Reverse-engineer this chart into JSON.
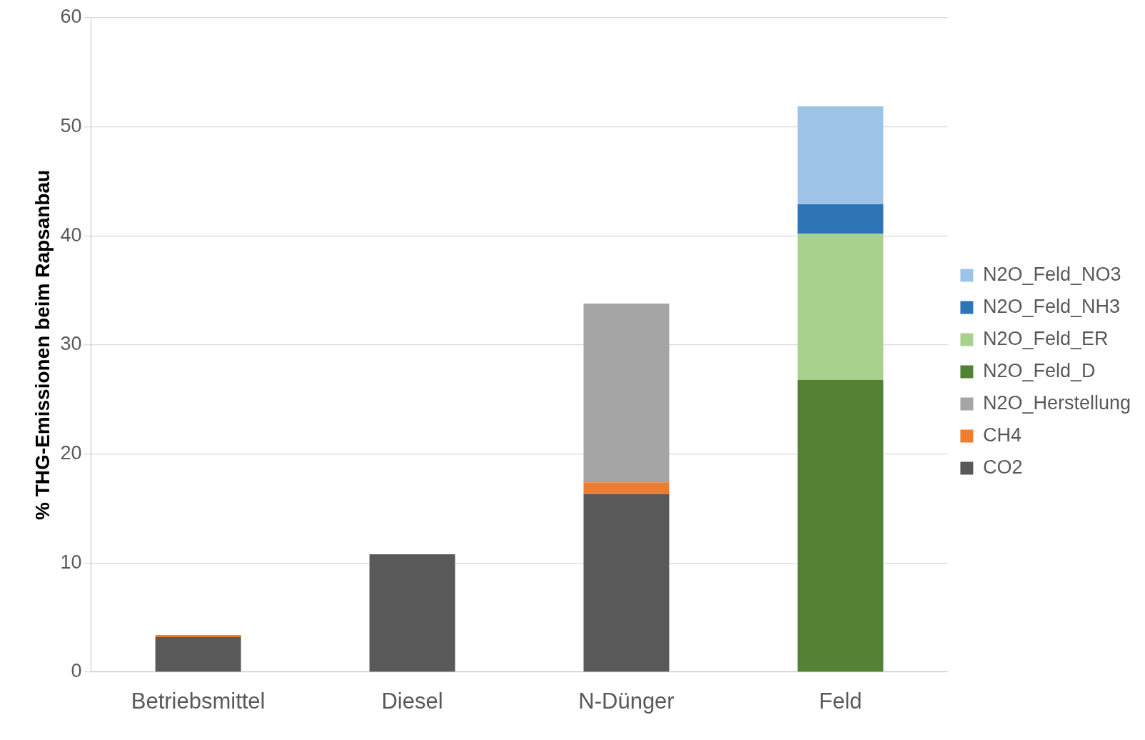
{
  "chart_data": {
    "type": "bar",
    "stacked": true,
    "ylabel": "% THG-Emissionen beim Rapsanbau",
    "categories": [
      "Betriebsmittel",
      "Diesel",
      "N-Dünger",
      "Feld"
    ],
    "series": [
      {
        "name": "CO2",
        "color": "#595959",
        "values": [
          3.2,
          10.8,
          16.3,
          0
        ]
      },
      {
        "name": "CH4",
        "color": "#ed7d31",
        "values": [
          0.2,
          0,
          1.1,
          0
        ]
      },
      {
        "name": "N2O_Herstellung",
        "color": "#a5a5a5",
        "values": [
          0,
          0,
          16.4,
          0
        ]
      },
      {
        "name": "N2O_Feld_D",
        "color": "#548235",
        "values": [
          0,
          0,
          0,
          26.8
        ]
      },
      {
        "name": "N2O_Feld_ER",
        "color": "#a9d18e",
        "values": [
          0,
          0,
          0,
          13.4
        ]
      },
      {
        "name": "N2O_Feld_NH3",
        "color": "#2e75b6",
        "values": [
          0,
          0,
          0,
          2.7
        ]
      },
      {
        "name": "N2O_Feld_NO3",
        "color": "#9dc3e6",
        "values": [
          0,
          0,
          0,
          9.0
        ]
      }
    ],
    "ylim": [
      0,
      60
    ],
    "yticks": [
      0,
      10,
      20,
      30,
      40,
      50,
      60
    ],
    "grid": "y",
    "legend": "right"
  }
}
